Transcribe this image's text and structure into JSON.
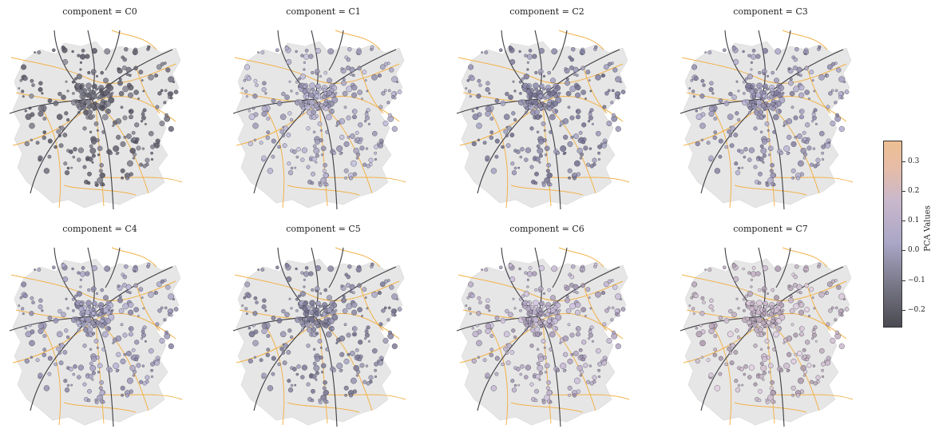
{
  "panels": [
    {
      "title": "component = C0",
      "tone": "#6e6d7a"
    },
    {
      "title": "component = C1",
      "tone": "#aaa6c4"
    },
    {
      "title": "component = C2",
      "tone": "#8a88a8"
    },
    {
      "title": "component = C3",
      "tone": "#9c97b8"
    },
    {
      "title": "component = C4",
      "tone": "#9e9abb"
    },
    {
      "title": "component = C5",
      "tone": "#8c8aa6"
    },
    {
      "title": "component = C6",
      "tone": "#b7aac6"
    },
    {
      "title": "component = C7",
      "tone": "#c6b3c6"
    }
  ],
  "colorbar": {
    "label": "PCA Values",
    "ticks": [
      "0.3",
      "0.2",
      "0.1",
      "0.0",
      "−0.1",
      "−0.2"
    ],
    "tick_values": [
      0.3,
      0.2,
      0.1,
      0.0,
      -0.1,
      -0.2
    ],
    "range": [
      -0.26,
      0.37
    ],
    "colors": [
      "#4a4a52",
      "#a9a6c6",
      "#eebf93"
    ]
  },
  "colors": {
    "region_fill": "#e6e6e6",
    "road_orange": "#f2b24a",
    "rail_dark": "#3c3c44"
  }
}
